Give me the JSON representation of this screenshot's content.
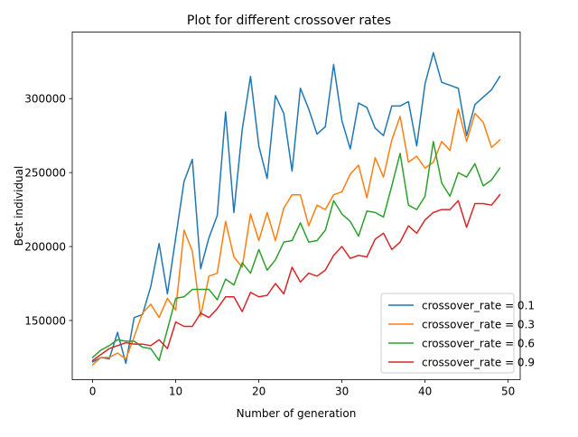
{
  "chart_data": {
    "type": "line",
    "title": "Plot for different crossover rates",
    "xlabel": "Number of generation",
    "ylabel": "Best individual",
    "xlim": [
      -2.45,
      51.45
    ],
    "ylim": [
      110000,
      345000
    ],
    "xticks": [
      0,
      10,
      20,
      30,
      40,
      50
    ],
    "yticks": [
      150000,
      200000,
      250000,
      300000
    ],
    "ytick_labels": [
      "150000",
      "200000",
      "250000",
      "300000"
    ],
    "grid": false,
    "legend_position": "lower-right",
    "x": [
      0,
      1,
      2,
      3,
      4,
      5,
      6,
      7,
      8,
      9,
      10,
      11,
      12,
      13,
      14,
      15,
      16,
      17,
      18,
      19,
      20,
      21,
      22,
      23,
      24,
      25,
      26,
      27,
      28,
      29,
      30,
      31,
      32,
      33,
      34,
      35,
      36,
      37,
      38,
      39,
      40,
      41,
      42,
      43,
      44,
      45,
      46,
      47,
      48,
      49
    ],
    "series": [
      {
        "name": "crossover_rate = 0.1",
        "color": "#1f77b4",
        "values": [
          122000,
          125000,
          124000,
          142000,
          121000,
          152000,
          154000,
          173000,
          202000,
          168000,
          206000,
          244000,
          259000,
          185000,
          206000,
          221000,
          291000,
          223000,
          279000,
          315000,
          268000,
          246000,
          302000,
          290000,
          251000,
          307000,
          293000,
          276000,
          281000,
          323000,
          285000,
          266000,
          297000,
          294000,
          280000,
          275000,
          295000,
          295000,
          298000,
          268000,
          310000,
          331000,
          311000,
          309000,
          307000,
          275000,
          296000,
          301000,
          306000,
          315000
        ]
      },
      {
        "name": "crossover_rate = 0.3",
        "color": "#ff7f0e",
        "values": [
          120000,
          125000,
          125000,
          128000,
          124000,
          139000,
          155000,
          161000,
          152000,
          165000,
          157000,
          211000,
          197000,
          153000,
          180000,
          182000,
          217000,
          193000,
          186000,
          222000,
          204000,
          223000,
          204000,
          226000,
          235000,
          235000,
          214000,
          228000,
          225000,
          235000,
          237000,
          249000,
          255000,
          233000,
          260000,
          247000,
          272000,
          288000,
          257000,
          261000,
          253000,
          257000,
          271000,
          265000,
          293000,
          271000,
          290000,
          284000,
          267000,
          272000
        ]
      },
      {
        "name": "crossover_rate = 0.6",
        "color": "#2ca02c",
        "values": [
          125000,
          130000,
          133000,
          137000,
          136000,
          136000,
          132000,
          131000,
          123000,
          144000,
          165000,
          166000,
          171000,
          171000,
          171000,
          164000,
          178000,
          174000,
          189000,
          182000,
          198000,
          184000,
          191000,
          203000,
          204000,
          216000,
          203000,
          204000,
          211000,
          231000,
          222000,
          217000,
          207000,
          224000,
          223000,
          220000,
          241000,
          263000,
          228000,
          225000,
          234000,
          271000,
          243000,
          234000,
          250000,
          247000,
          256000,
          241000,
          245000,
          253000
        ]
      },
      {
        "name": "crossover_rate = 0.9",
        "color": "#d62728",
        "values": [
          123000,
          127000,
          131000,
          133000,
          135000,
          134000,
          134000,
          133000,
          137000,
          131000,
          149000,
          146000,
          146000,
          155000,
          152000,
          158000,
          166000,
          166000,
          156000,
          169000,
          166000,
          167000,
          175000,
          168000,
          186000,
          176000,
          182000,
          180000,
          184000,
          194000,
          200000,
          192000,
          194000,
          193000,
          205000,
          209000,
          198000,
          203000,
          214000,
          209000,
          218000,
          223000,
          225000,
          225000,
          231000,
          213000,
          229000,
          229000,
          228000,
          235000
        ]
      }
    ]
  }
}
